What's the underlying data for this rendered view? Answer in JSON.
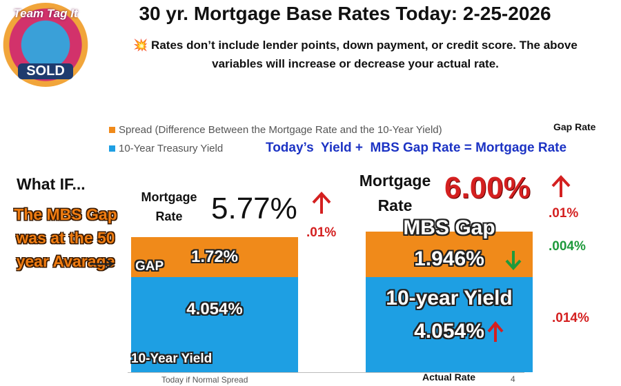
{
  "chart_data": {
    "type": "bar",
    "stacked": true,
    "title": "30 yr. Mortgage Base Rates Today: 2-25-2026",
    "subtitle": "💥 Rates don’t include lender points, down payment, or credit score. The above variables will increase or decrease your actual rate.",
    "logo": {
      "top": "Team Tag It",
      "bottom": "SOLD"
    },
    "categories": [
      "Today if Normal Spread",
      "Actual Rate"
    ],
    "series": [
      {
        "name": "10-Year Treasury Yield",
        "color": "#1e9fe3",
        "values": [
          4.054,
          4.054
        ],
        "value_labels": [
          "4.054%",
          "4.054%"
        ]
      },
      {
        "name": "Spread (Difference Between the Mortgage Rate and the 10-Year Yield)",
        "color": "#f08a1a",
        "values": [
          1.72,
          1.946
        ],
        "value_labels": [
          "1.72%",
          "1.946%"
        ]
      }
    ],
    "annotations": {
      "gap_rate": "Gap Rate",
      "formula": "Today’s  Yield +  MBS Gap Rate = Mortgage Rate",
      "what_if": "What IF...",
      "mbs_gap_50": "The MBS Gap was at the 50 year Avarage",
      "gap": "GAP",
      "left_mortgage_label": "Mortgage Rate",
      "left_mortgage_rate": "5.77%",
      "left_change": ".01%",
      "right_mortgage_label": "Mortgage Rate",
      "right_mortgage_rate": "6.00%",
      "right_change": ".01%",
      "gap_change": ".004%",
      "yield_change": ".014%",
      "mbs_gap": "MBS Gap",
      "ten_year_yield_right": "10-year Yield",
      "ten_year_yield_left": "10-Year Yield",
      "page_number": "4"
    }
  }
}
